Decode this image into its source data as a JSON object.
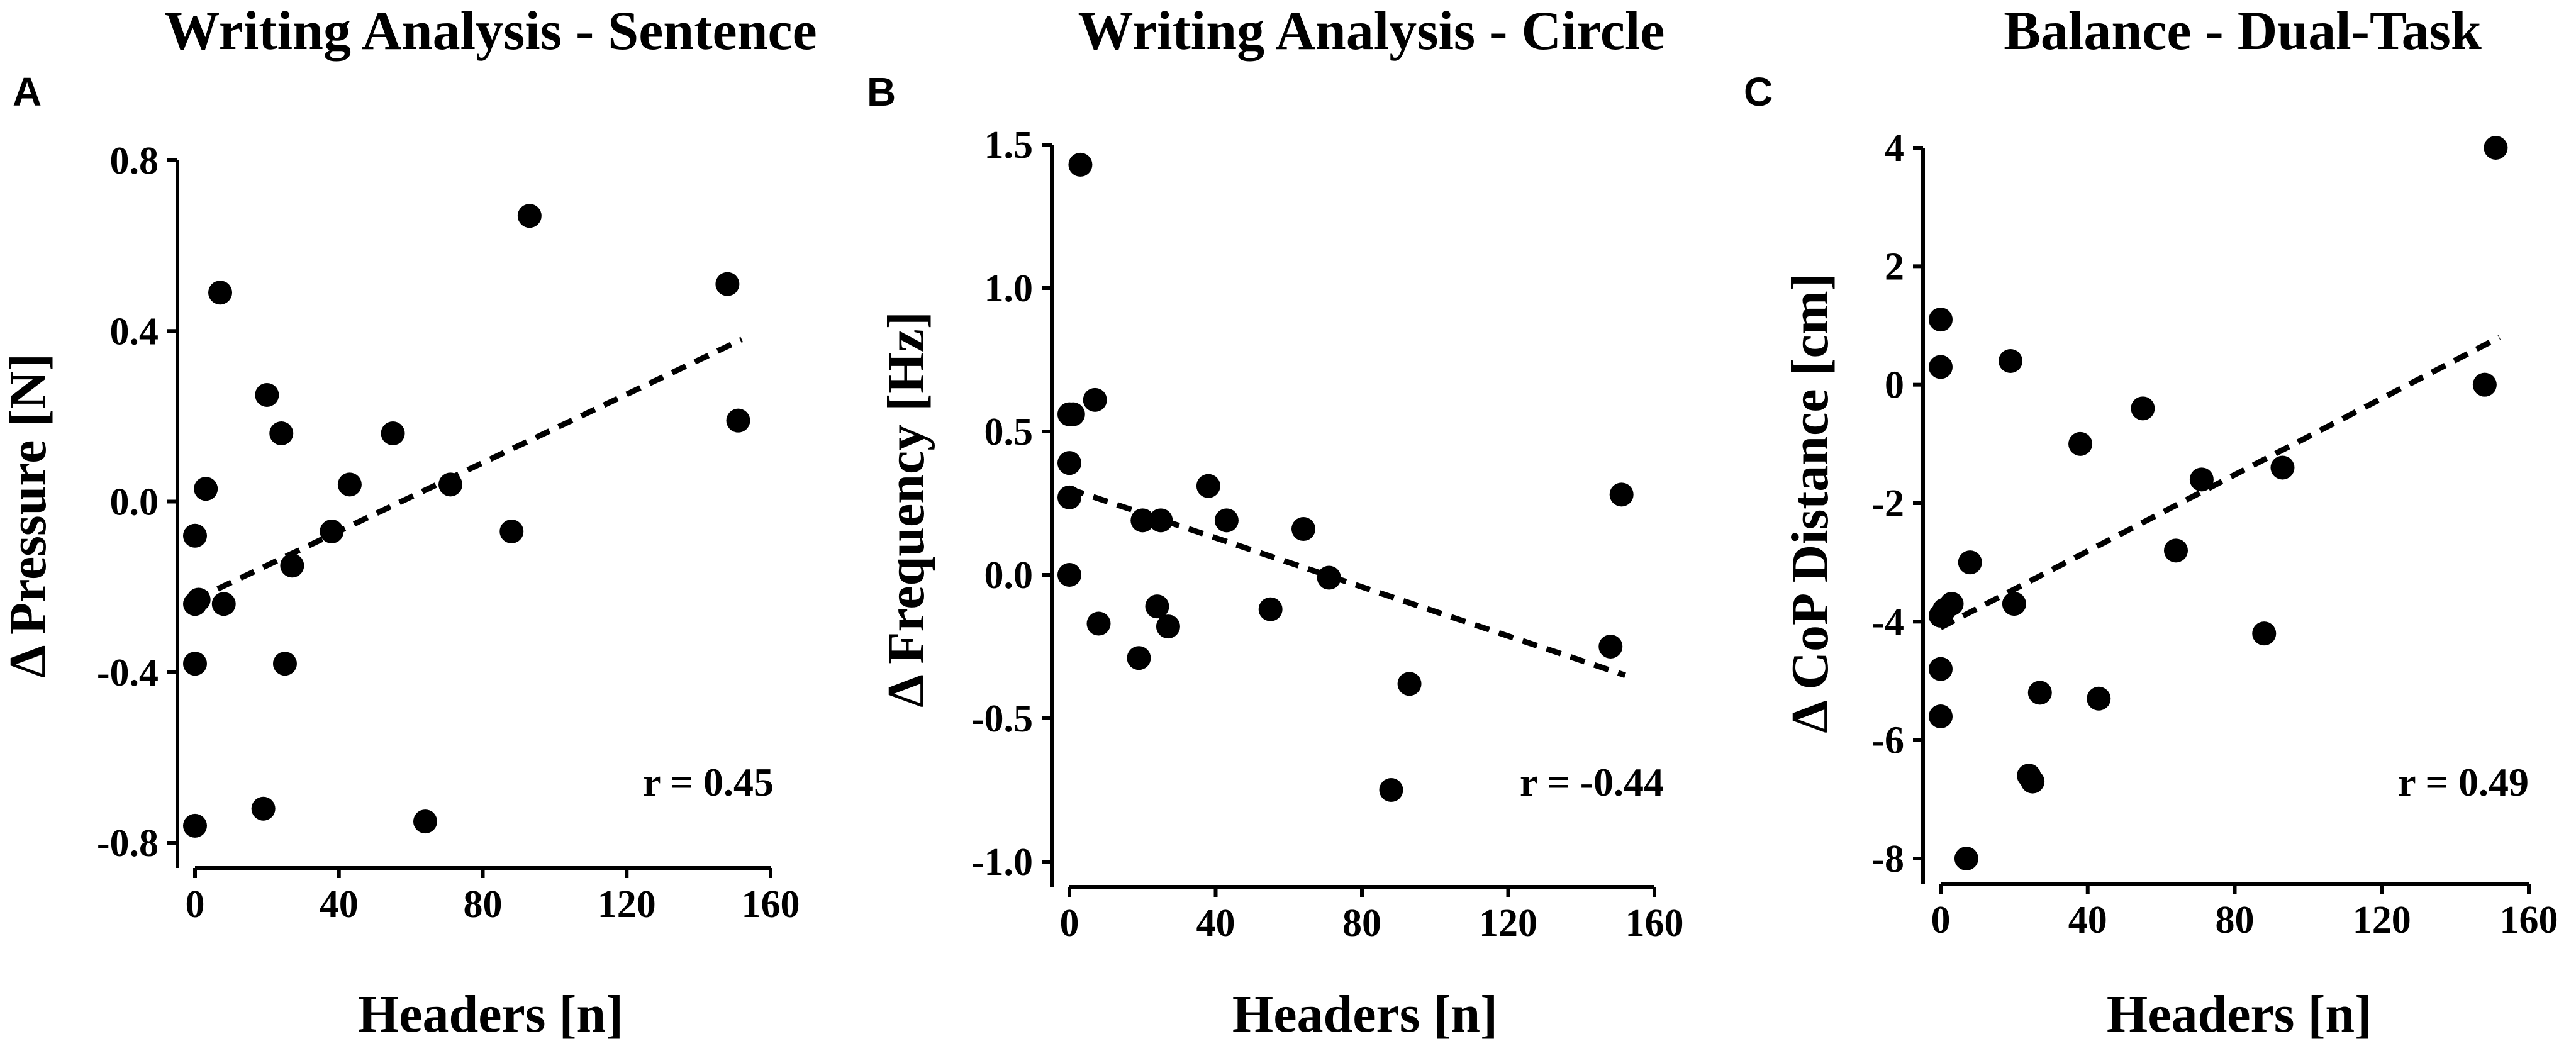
{
  "chart_data": [
    {
      "type": "scatter",
      "panel": "A",
      "title": "Writing Analysis - Sentence",
      "xlabel": "Headers [n]",
      "ylabel": "Δ Pressure [N]",
      "xlim": [
        0,
        160
      ],
      "ylim": [
        -0.8,
        0.8
      ],
      "xticks": [
        0,
        40,
        80,
        120,
        160
      ],
      "yticks": [
        -0.8,
        -0.4,
        0.0,
        0.4,
        0.8
      ],
      "ytick_labels": [
        "-0.8",
        "-0.4",
        "0.0",
        "0.4",
        "0.8"
      ],
      "annotation": "r = 0.45",
      "trend": {
        "x": [
          0,
          152
        ],
        "y": [
          -0.23,
          0.38
        ]
      },
      "points": [
        {
          "x": 0,
          "y": -0.08
        },
        {
          "x": 0,
          "y": -0.24
        },
        {
          "x": 0,
          "y": -0.38
        },
        {
          "x": 0,
          "y": -0.76
        },
        {
          "x": 1,
          "y": -0.23
        },
        {
          "x": 3,
          "y": 0.03
        },
        {
          "x": 7,
          "y": 0.49
        },
        {
          "x": 8,
          "y": -0.24
        },
        {
          "x": 19,
          "y": -0.72
        },
        {
          "x": 20,
          "y": 0.25
        },
        {
          "x": 24,
          "y": 0.16
        },
        {
          "x": 25,
          "y": -0.38
        },
        {
          "x": 27,
          "y": -0.15
        },
        {
          "x": 38,
          "y": -0.07
        },
        {
          "x": 43,
          "y": 0.04
        },
        {
          "x": 55,
          "y": 0.16
        },
        {
          "x": 64,
          "y": -0.75
        },
        {
          "x": 71,
          "y": 0.04
        },
        {
          "x": 88,
          "y": -0.07
        },
        {
          "x": 93,
          "y": 0.67
        },
        {
          "x": 148,
          "y": 0.51
        },
        {
          "x": 151,
          "y": 0.19
        }
      ]
    },
    {
      "type": "scatter",
      "panel": "B",
      "title": "Writing Analysis - Circle",
      "xlabel": "Headers [n]",
      "ylabel": "Δ Frequency [Hz]",
      "xlim": [
        0,
        160
      ],
      "ylim": [
        -1.0,
        1.5
      ],
      "xticks": [
        0,
        40,
        80,
        120,
        160
      ],
      "yticks": [
        -1.0,
        -0.5,
        0.0,
        0.5,
        1.0,
        1.5
      ],
      "ytick_labels": [
        "-1.0",
        "-0.5",
        "0.0",
        "0.5",
        "1.0",
        "1.5"
      ],
      "annotation": "r = -0.44",
      "trend": {
        "x": [
          0,
          152
        ],
        "y": [
          0.3,
          -0.35
        ]
      },
      "points": [
        {
          "x": 0,
          "y": 0.56
        },
        {
          "x": 0,
          "y": 0.39
        },
        {
          "x": 0,
          "y": 0.27
        },
        {
          "x": 0,
          "y": 0.0
        },
        {
          "x": 1,
          "y": 0.56
        },
        {
          "x": 3,
          "y": 1.43
        },
        {
          "x": 7,
          "y": 0.61
        },
        {
          "x": 8,
          "y": -0.17
        },
        {
          "x": 19,
          "y": -0.29
        },
        {
          "x": 20,
          "y": 0.19
        },
        {
          "x": 24,
          "y": -0.11
        },
        {
          "x": 25,
          "y": 0.19
        },
        {
          "x": 27,
          "y": -0.18
        },
        {
          "x": 38,
          "y": 0.31
        },
        {
          "x": 43,
          "y": 0.19
        },
        {
          "x": 55,
          "y": -0.12
        },
        {
          "x": 64,
          "y": 0.16
        },
        {
          "x": 71,
          "y": -0.01
        },
        {
          "x": 88,
          "y": -0.75
        },
        {
          "x": 93,
          "y": -0.38
        },
        {
          "x": 148,
          "y": -0.25
        },
        {
          "x": 151,
          "y": 0.28
        }
      ]
    },
    {
      "type": "scatter",
      "panel": "C",
      "title": "Balance - Dual-Task",
      "xlabel": "Headers [n]",
      "ylabel": "Δ CoP Distance [cm]",
      "xlim": [
        0,
        160
      ],
      "ylim": [
        -8,
        4
      ],
      "xticks": [
        0,
        40,
        80,
        120,
        160
      ],
      "yticks": [
        -8,
        -6,
        -4,
        -2,
        0,
        2,
        4
      ],
      "ytick_labels": [
        "-8",
        "-6",
        "-4",
        "-2",
        "0",
        "2",
        "4"
      ],
      "annotation": "r = 0.49",
      "trend": {
        "x": [
          0,
          152
        ],
        "y": [
          -4.1,
          0.8
        ]
      },
      "points": [
        {
          "x": 0,
          "y": 1.1
        },
        {
          "x": 0,
          "y": 0.3
        },
        {
          "x": 0,
          "y": -3.9
        },
        {
          "x": 0,
          "y": -4.8
        },
        {
          "x": 0,
          "y": -5.6
        },
        {
          "x": 1,
          "y": -3.8
        },
        {
          "x": 3,
          "y": -3.7
        },
        {
          "x": 7,
          "y": -8.0
        },
        {
          "x": 8,
          "y": -3.0
        },
        {
          "x": 19,
          "y": 0.4
        },
        {
          "x": 20,
          "y": -3.7
        },
        {
          "x": 24,
          "y": -6.6
        },
        {
          "x": 25,
          "y": -6.7
        },
        {
          "x": 27,
          "y": -5.2
        },
        {
          "x": 38,
          "y": -1.0
        },
        {
          "x": 43,
          "y": -5.3
        },
        {
          "x": 55,
          "y": -0.4
        },
        {
          "x": 64,
          "y": -2.8
        },
        {
          "x": 71,
          "y": -1.6
        },
        {
          "x": 88,
          "y": -4.2
        },
        {
          "x": 93,
          "y": -1.4
        },
        {
          "x": 148,
          "y": 0.0
        },
        {
          "x": 151,
          "y": 4.0
        }
      ]
    }
  ]
}
